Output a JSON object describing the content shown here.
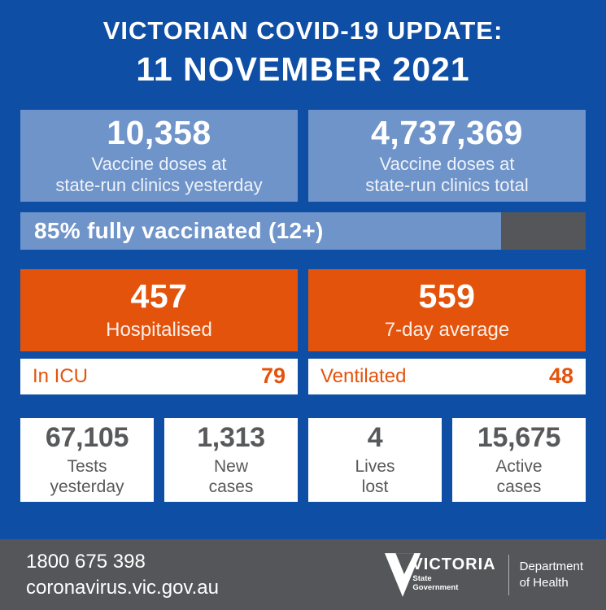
{
  "title": {
    "line1": "VICTORIAN COVID-19 UPDATE:",
    "line2": "11 NOVEMBER 2021"
  },
  "vaccine_boxes": [
    {
      "value": "10,358",
      "label": "Vaccine doses at\nstate-run clinics yesterday"
    },
    {
      "value": "4,737,369",
      "label": "Vaccine doses at\nstate-run clinics total"
    }
  ],
  "progress": {
    "label": "85% fully vaccinated (12+)",
    "percent": 85
  },
  "hospital_boxes": [
    {
      "value": "457",
      "label": "Hospitalised"
    },
    {
      "value": "559",
      "label": "7-day average"
    }
  ],
  "detail_rows": [
    {
      "label": "In ICU",
      "value": "79"
    },
    {
      "label": "Ventilated",
      "value": "48"
    }
  ],
  "stat_boxes": [
    {
      "value": "67,105",
      "label": "Tests\nyesterday"
    },
    {
      "value": "1,313",
      "label": "New\ncases"
    },
    {
      "value": "4",
      "label": "Lives\nlost"
    },
    {
      "value": "15,675",
      "label": "Active\ncases"
    }
  ],
  "footer": {
    "phone": "1800 675 398",
    "url": "coronavirus.vic.gov.au",
    "logo": {
      "brand": "VICTORIA",
      "sub_line1": "State",
      "sub_line2": "Government"
    },
    "department_line1": "Department",
    "department_line2": "of Health"
  },
  "colors": {
    "background": "#0E4EA5",
    "panel_blue": "#6F94CA",
    "accent_orange": "#E4530B",
    "dark_gray": "#54565A",
    "text_gray": "#58595B",
    "white": "#FFFFFF"
  }
}
